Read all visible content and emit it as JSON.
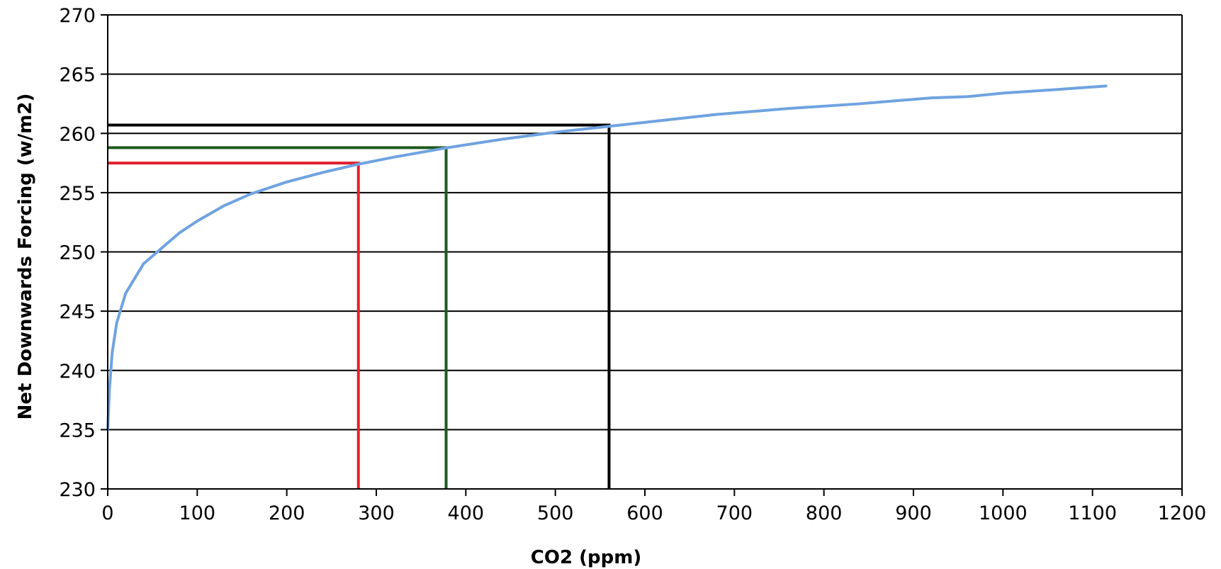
{
  "chart_data": {
    "type": "line",
    "title": "",
    "xlabel": "CO2 (ppm)",
    "ylabel": "Net Downwards Forcing (w/m2)",
    "xlim": [
      0,
      1200
    ],
    "ylim": [
      230,
      270
    ],
    "x_ticks": [
      0,
      100,
      200,
      300,
      400,
      500,
      600,
      700,
      800,
      900,
      1000,
      1100,
      1200
    ],
    "y_ticks": [
      230,
      235,
      240,
      245,
      250,
      255,
      260,
      265,
      270
    ],
    "grid": "horizontal",
    "legend": "none",
    "series": [
      {
        "color": "#6fa3e0",
        "x": [
          0,
          2,
          5,
          10,
          20,
          40,
          60,
          80,
          100,
          130,
          160,
          200,
          240,
          280,
          320,
          380,
          440,
          500,
          560,
          620,
          680,
          760,
          840,
          920,
          960,
          1000,
          1060,
          1115
        ],
        "y": [
          235,
          238.5,
          241.5,
          244,
          246.5,
          249,
          250.3,
          251.6,
          252.6,
          253.9,
          254.9,
          255.9,
          256.7,
          257.4,
          258.0,
          258.8,
          259.5,
          260.1,
          260.6,
          261.1,
          261.6,
          262.1,
          262.5,
          263.0,
          263.1,
          263.4,
          263.7,
          264.0
        ]
      }
    ],
    "reference_lines": [
      {
        "color": "#e0212b",
        "x": 280,
        "y": 257.5
      },
      {
        "color": "#1d5a1d",
        "x": 378,
        "y": 258.8
      },
      {
        "color": "#000000",
        "x": 560,
        "y": 260.7
      }
    ]
  }
}
